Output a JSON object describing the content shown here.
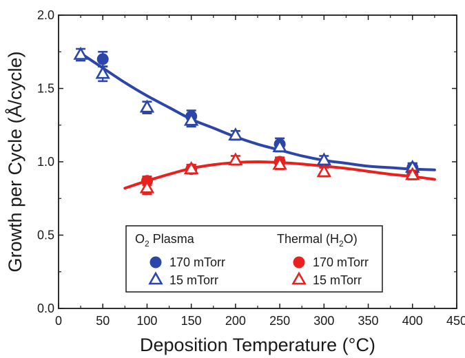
{
  "chart_data": {
    "type": "scatter",
    "xlabel": "Deposition Temperature (°C)",
    "ylabel": "Growth per Cycle (Å/cycle)",
    "xlim": [
      0,
      450
    ],
    "ylim": [
      0.0,
      2.0
    ],
    "x_ticks": [
      "0",
      "50",
      "100",
      "150",
      "200",
      "250",
      "300",
      "350",
      "400",
      "450"
    ],
    "y_ticks": [
      "0.0",
      "0.5",
      "1.0",
      "1.5",
      "2.0"
    ],
    "grid": false,
    "legend_position": "bottom-center",
    "colors": {
      "plasma": "#2b46a8",
      "thermal": "#e8201e"
    },
    "legend": {
      "plasma_group": {
        "prefix": "O",
        "sub": "2",
        "suffix": " Plasma"
      },
      "thermal_group": {
        "prefix": "Thermal (H",
        "sub": "2",
        "suffix": "O)"
      },
      "entries": [
        {
          "label": "170 mTorr",
          "marker": "circle",
          "group": "plasma"
        },
        {
          "label": "15 mTorr",
          "marker": "triangle",
          "group": "plasma"
        },
        {
          "label": "170 mTorr",
          "marker": "circle",
          "group": "thermal"
        },
        {
          "label": "15 mTorr",
          "marker": "triangle",
          "group": "thermal"
        }
      ]
    },
    "series": [
      {
        "group": "plasma",
        "marker": "circle",
        "pressure": "170 mTorr",
        "x": [
          50,
          150,
          250,
          400
        ],
        "y": [
          1.7,
          1.31,
          1.12,
          0.96
        ],
        "err": [
          0.05,
          0.04,
          0.04,
          0.03
        ]
      },
      {
        "group": "plasma",
        "marker": "triangle",
        "pressure": "15 mTorr",
        "x": [
          25,
          50,
          100,
          150,
          200,
          250,
          300,
          400
        ],
        "y": [
          1.73,
          1.6,
          1.37,
          1.28,
          1.18,
          1.1,
          1.01,
          0.96
        ],
        "err": [
          0.04,
          0.05,
          0.04,
          0.04,
          0.03,
          0.03,
          0.03,
          0.03
        ]
      },
      {
        "group": "thermal",
        "marker": "circle",
        "pressure": "170 mTorr",
        "x": [
          100,
          150,
          250,
          400
        ],
        "y": [
          0.87,
          0.95,
          1.0,
          0.92
        ],
        "err": [
          0.03,
          0.03,
          0.03,
          0.03
        ]
      },
      {
        "group": "thermal",
        "marker": "triangle",
        "pressure": "15 mTorr",
        "x": [
          100,
          150,
          200,
          250,
          300,
          400
        ],
        "y": [
          0.82,
          0.95,
          1.01,
          0.98,
          0.93,
          0.91
        ],
        "err": [
          0.04,
          0.03,
          0.03,
          0.03,
          0.03,
          0.03
        ]
      }
    ],
    "fit_curves": [
      {
        "group": "plasma",
        "x": [
          25,
          50,
          75,
          100,
          125,
          150,
          175,
          200,
          225,
          250,
          275,
          300,
          325,
          350,
          375,
          400,
          425
        ],
        "y": [
          1.74,
          1.64,
          1.54,
          1.45,
          1.37,
          1.29,
          1.23,
          1.17,
          1.12,
          1.08,
          1.04,
          1.01,
          0.99,
          0.97,
          0.96,
          0.95,
          0.945
        ]
      },
      {
        "group": "thermal",
        "x": [
          75,
          100,
          125,
          150,
          175,
          200,
          225,
          250,
          275,
          300,
          325,
          350,
          375,
          400,
          425
        ],
        "y": [
          0.82,
          0.87,
          0.915,
          0.955,
          0.98,
          0.995,
          1.0,
          0.995,
          0.985,
          0.97,
          0.955,
          0.935,
          0.915,
          0.9,
          0.88
        ]
      }
    ]
  }
}
